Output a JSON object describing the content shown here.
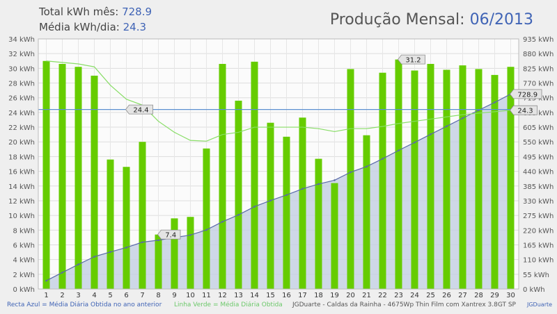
{
  "header": {
    "total_label": "Total kWh mês:",
    "total_value": "728.9",
    "avg_label": "Média kWh/dia:",
    "avg_value": "24.3",
    "title_label": "Produção Mensal:",
    "title_period": "06/2013"
  },
  "footer": {
    "blue_legend": "Recta Azul = Média Diária Obtida no ano anterior",
    "green_legend": "Linha Verde = Média Diária Obtida",
    "credit": "JGDuarte  -  Caldas da Rainha  -  4675Wp Thin Film com Xantrex 3.8GT SP",
    "brand": "JGDuarte"
  },
  "colors": {
    "bar": "#66cc00",
    "area_fill": "#c6d1e3",
    "cumulative_line": "#5a6aa8",
    "reference_line": "#5b8fd0",
    "avg_line": "#88dd66",
    "plot_bg": "#fbfbfb"
  },
  "chart_data": {
    "type": "bar",
    "categories": [
      "1",
      "2",
      "3",
      "4",
      "5",
      "6",
      "7",
      "8",
      "9",
      "10",
      "11",
      "12",
      "13",
      "14",
      "15",
      "16",
      "17",
      "18",
      "19",
      "20",
      "21",
      "22",
      "23",
      "24",
      "25",
      "26",
      "27",
      "28",
      "29",
      "30"
    ],
    "series": [
      {
        "type": "bar",
        "axis": "left",
        "values": [
          31.0,
          30.6,
          30.2,
          29.0,
          17.6,
          16.6,
          20.0,
          7.4,
          9.6,
          9.8,
          19.1,
          30.6,
          25.6,
          30.9,
          22.6,
          20.7,
          23.3,
          17.7,
          14.4,
          29.9,
          20.9,
          29.4,
          31.2,
          29.7,
          30.6,
          29.8,
          30.4,
          29.9,
          29.1,
          30.2
        ]
      },
      {
        "type": "area",
        "axis": "right",
        "values": [
          31.0,
          61.6,
          91.8,
          120.8,
          138.4,
          155.0,
          175.0,
          182.4,
          192.0,
          201.8,
          220.9,
          251.5,
          277.1,
          308.0,
          330.6,
          351.3,
          374.6,
          392.3,
          406.7,
          436.6,
          457.5,
          486.9,
          518.1,
          547.8,
          578.4,
          608.2,
          638.6,
          668.5,
          697.6,
          728.9
        ]
      },
      {
        "type": "line",
        "axis": "left",
        "values": [
          31.0,
          30.8,
          30.6,
          30.2,
          27.7,
          25.8,
          25.0,
          22.8,
          21.3,
          20.2,
          20.1,
          21.0,
          21.3,
          22.0,
          22.0,
          22.0,
          22.0,
          21.8,
          21.4,
          21.8,
          21.8,
          22.1,
          22.5,
          22.8,
          23.1,
          23.4,
          23.7,
          23.9,
          24.1,
          24.3
        ]
      },
      {
        "type": "hline",
        "axis": "left",
        "value": 24.4
      }
    ],
    "annotations": [
      {
        "text": "24.4",
        "x": "6",
        "y": 24.4,
        "axis": "left"
      },
      {
        "text": "7.4",
        "x": "8",
        "y": 7.4,
        "axis": "left"
      },
      {
        "text": "31.2",
        "x": "23",
        "y": 31.2,
        "axis": "left"
      },
      {
        "text": "728.9",
        "x": "30",
        "y": 728.9,
        "axis": "right"
      },
      {
        "text": "24.3",
        "x": "30",
        "y": 24.3,
        "axis": "left"
      }
    ],
    "y_left": {
      "min": 0,
      "max": 34,
      "step": 2,
      "unit": "kWh"
    },
    "y_right": {
      "min": 0,
      "max": 935,
      "step": 55,
      "unit": "kWh"
    },
    "grid": true
  }
}
